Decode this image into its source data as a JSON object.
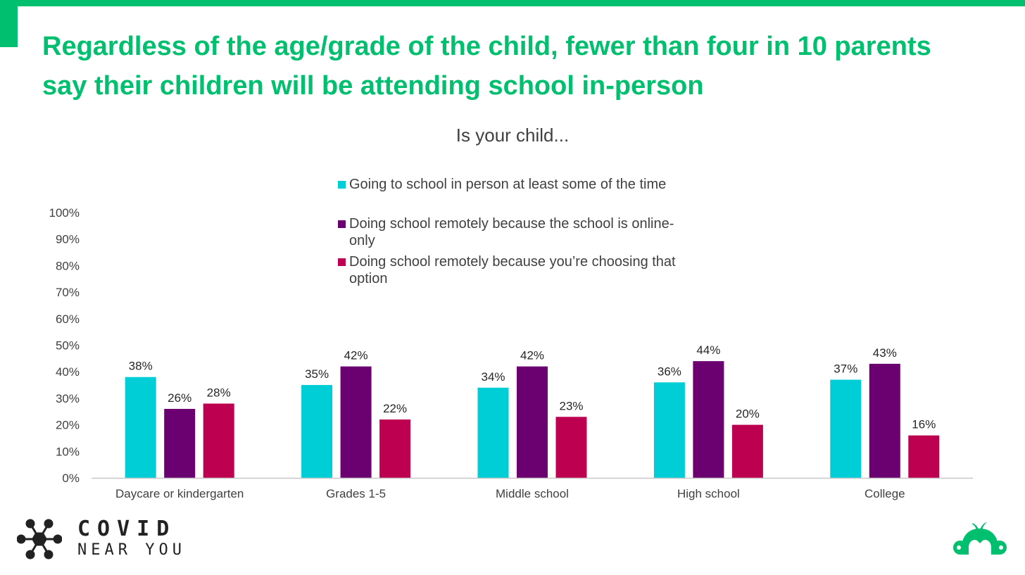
{
  "headline": "Regardless of the age/grade of the child, fewer than four in 10 parents say their children will be attending school in-person",
  "brand": {
    "accent": "#00BF6F",
    "logo_left_line1": "COVID",
    "logo_left_line2": "NEAR YOU",
    "logo_left_icon": "virus-icon",
    "logo_right_icon": "monkey-logo-icon"
  },
  "chart_data": {
    "type": "bar",
    "title": "Is your child...",
    "xlabel": "",
    "ylabel": "",
    "ylim": [
      0,
      100
    ],
    "yticks": [
      "0%",
      "10%",
      "20%",
      "30%",
      "40%",
      "50%",
      "60%",
      "70%",
      "80%",
      "90%",
      "100%"
    ],
    "grid": false,
    "legend_position": "top-center",
    "categories": [
      "Daycare or kindergarten",
      "Grades 1-5",
      "Middle school",
      "High school",
      "College"
    ],
    "series": [
      {
        "name": "Going to school in person at least some of the time",
        "color": "#00CED6",
        "values": [
          38,
          35,
          34,
          36,
          37
        ],
        "labels": [
          "38%",
          "35%",
          "34%",
          "36%",
          "37%"
        ]
      },
      {
        "name": "Doing school remotely because the school is online-only",
        "color": "#6B0071",
        "values": [
          26,
          42,
          42,
          44,
          43
        ],
        "labels": [
          "26%",
          "42%",
          "42%",
          "44%",
          "43%"
        ]
      },
      {
        "name": "Doing school remotely because you’re choosing that option",
        "color": "#BE0050",
        "values": [
          28,
          22,
          23,
          20,
          16
        ],
        "labels": [
          "28%",
          "22%",
          "23%",
          "20%",
          "16%"
        ]
      }
    ]
  }
}
